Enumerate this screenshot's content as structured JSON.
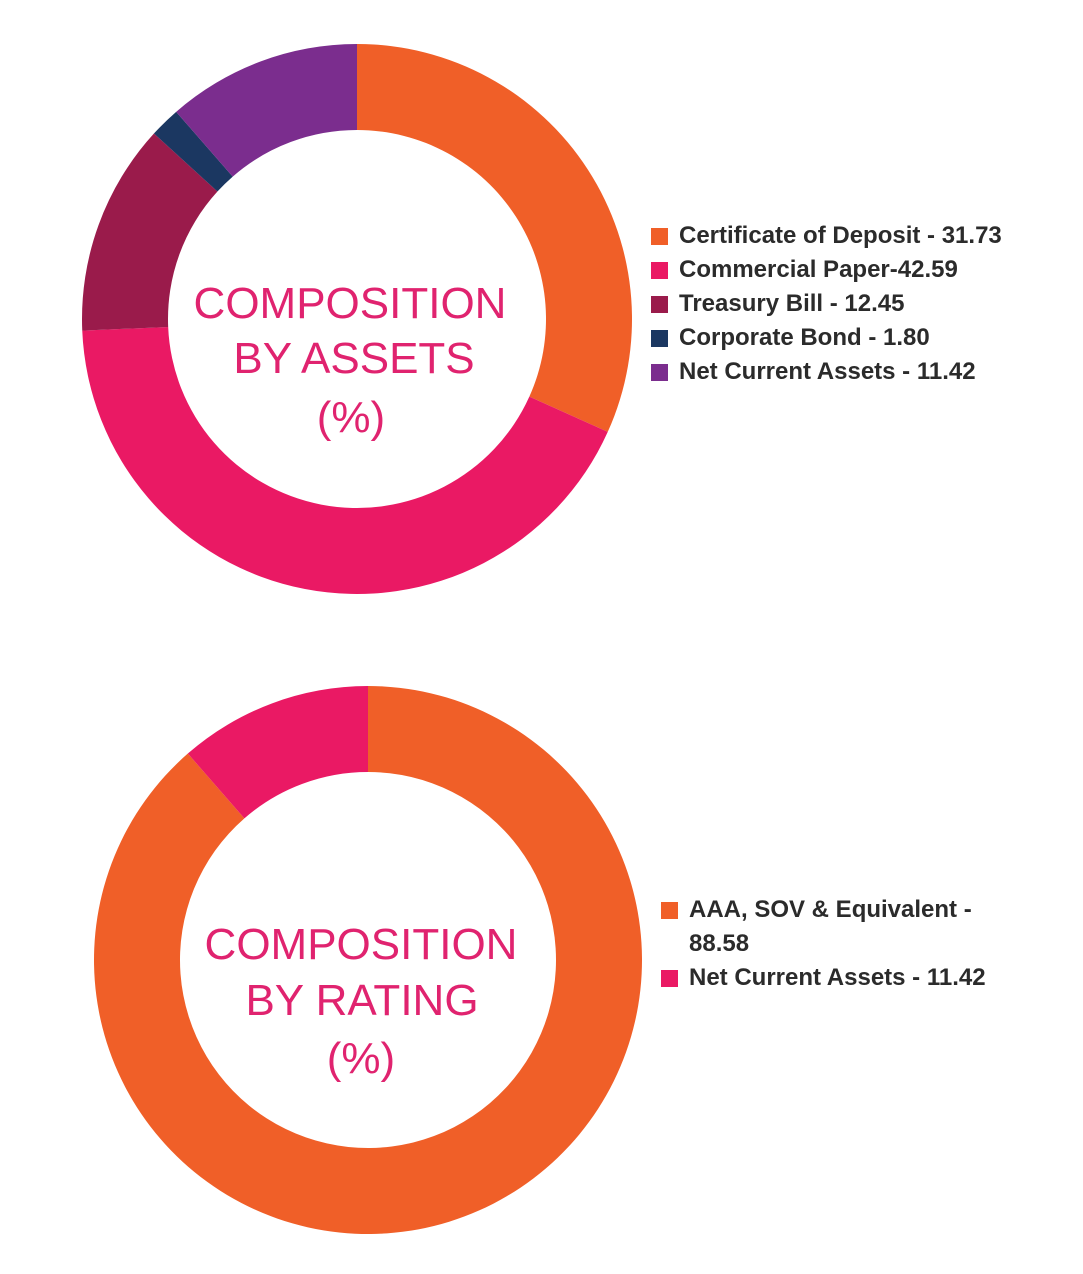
{
  "chart_data": [
    {
      "type": "pie",
      "title": "COMPOSITION BY ASSETS (%)",
      "title_lines": [
        "COMPOSITION",
        "BY ASSETS",
        "(%)"
      ],
      "series": [
        {
          "label": "Certificate of Deposit - 31.73",
          "category": "Certificate of Deposit",
          "value": 31.73,
          "color": "#f05f28"
        },
        {
          "label": "Commercial Paper-42.59",
          "category": "Commercial Paper",
          "value": 42.59,
          "color": "#ea1964"
        },
        {
          "label": "Treasury Bill - 12.45",
          "category": "Treasury Bill",
          "value": 12.45,
          "color": "#9a1b4b"
        },
        {
          "label": "Corporate Bond - 1.80",
          "category": "Corporate Bond",
          "value": 1.8,
          "color": "#1b3761"
        },
        {
          "label": "Net Current Assets - 11.42",
          "category": "Net Current Assets",
          "value": 11.42,
          "color": "#7b2d8e"
        }
      ],
      "legend_position": "right",
      "chart_style": "donut"
    },
    {
      "type": "pie",
      "title": "COMPOSITION BY RATING (%)",
      "title_lines": [
        "COMPOSITION",
        "BY RATING",
        "(%)"
      ],
      "series": [
        {
          "label": "AAA, SOV & Equivalent - 88.58",
          "category": "AAA, SOV & Equivalent",
          "value": 88.58,
          "color": "#f05f28"
        },
        {
          "label": "Net Current Assets - 11.42",
          "category": "Net Current Assets",
          "value": 11.42,
          "color": "#ea1964"
        }
      ],
      "legend_position": "right",
      "chart_style": "donut"
    }
  ],
  "colors": {
    "title": "#e0236f",
    "legend_text": "#2b2b2b",
    "background": "#ffffff"
  }
}
